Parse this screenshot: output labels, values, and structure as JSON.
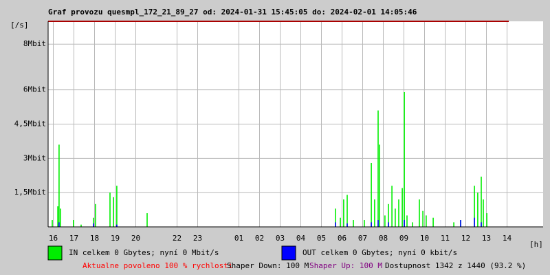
{
  "chart_data": {
    "type": "impulse",
    "title": "Graf provozu quesmpl_172_21_89_27 od: 2024-01-31 15:45:05 do: 2024-02-01 14:05:46",
    "ylabel": "[/s]",
    "xlabel": "[h]",
    "x": [
      15.95,
      16.22,
      16.28,
      16.35,
      16.98,
      17.35,
      17.95,
      18.05,
      18.75,
      18.92,
      19.08,
      20.55,
      29.68,
      29.92,
      30.08,
      30.25,
      30.55,
      31.08,
      31.42,
      31.58,
      31.75,
      31.82,
      32.08,
      32.25,
      32.42,
      32.58,
      32.75,
      32.92,
      33.02,
      33.15,
      33.42,
      33.75,
      33.92,
      34.08,
      34.42,
      35.42,
      35.75,
      36.42,
      36.58,
      36.75,
      36.85,
      37.02
    ],
    "series": [
      {
        "name": "IN celkem 0 Gbytes; nyní 0 Mbit/s",
        "color": "#00ee00",
        "values": [
          0.3,
          0.9,
          3.6,
          0.8,
          0.3,
          0.1,
          0.4,
          1.0,
          1.5,
          1.3,
          1.8,
          0.6,
          0.8,
          0.4,
          1.2,
          1.4,
          0.3,
          0.3,
          2.8,
          1.2,
          5.1,
          3.6,
          0.5,
          1.0,
          1.8,
          0.8,
          1.2,
          1.7,
          5.9,
          0.5,
          0.2,
          1.2,
          0.7,
          0.5,
          0.4,
          0.2,
          0.3,
          1.8,
          1.5,
          2.2,
          1.2,
          0.6
        ]
      },
      {
        "name": "OUT celkem 0 Gbytes; nyní 0 kbit/s",
        "color": "#0000ff",
        "values": [
          null,
          null,
          0.2,
          null,
          null,
          null,
          0.15,
          null,
          null,
          null,
          0.1,
          null,
          0.2,
          null,
          null,
          0.15,
          null,
          null,
          0.2,
          null,
          0.3,
          null,
          null,
          0.2,
          null,
          null,
          null,
          null,
          0.3,
          null,
          null,
          null,
          null,
          null,
          null,
          null,
          0.3,
          0.4,
          null,
          0.2,
          null,
          null
        ]
      }
    ],
    "xlim": [
      15.75,
      39.75
    ],
    "ylim": [
      0,
      9
    ],
    "yticks": [
      {
        "value": 1.5,
        "label": "1,5Mbit"
      },
      {
        "value": 3,
        "label": "3Mbit"
      },
      {
        "value": 4.5,
        "label": "4,5Mbit"
      },
      {
        "value": 6,
        "label": "6Mbit"
      },
      {
        "value": 8,
        "label": "8Mbit"
      }
    ],
    "xticks": [
      16,
      17,
      18,
      19,
      20,
      22,
      23,
      {
        "value": 25,
        "label": "01"
      },
      {
        "value": 26,
        "label": "02"
      },
      {
        "value": 27,
        "label": "03"
      },
      {
        "value": 28,
        "label": "04"
      },
      {
        "value": 29,
        "label": "05"
      },
      {
        "value": 30,
        "label": "06"
      },
      {
        "value": 31,
        "label": "07"
      },
      {
        "value": 32,
        "label": "08"
      },
      {
        "value": 33,
        "label": "09"
      },
      {
        "value": 34,
        "label": "10"
      },
      {
        "value": 35,
        "label": "11"
      },
      {
        "value": 36,
        "label": "12"
      },
      {
        "value": 37,
        "label": "13"
      },
      {
        "value": 38,
        "label": "14"
      }
    ],
    "grid": true,
    "annotations": [
      {
        "text": "Aktualne povoleno 100 % rychlosti",
        "color": "#ff0000"
      },
      {
        "text": "Shaper Down: 100 M",
        "color": "#000000"
      },
      {
        "text": "Shaper Up: 100 M",
        "color": "#800080"
      },
      {
        "text": "Dostupnost 1342 z 1440 (93.2 %)",
        "color": "#000000"
      }
    ]
  }
}
